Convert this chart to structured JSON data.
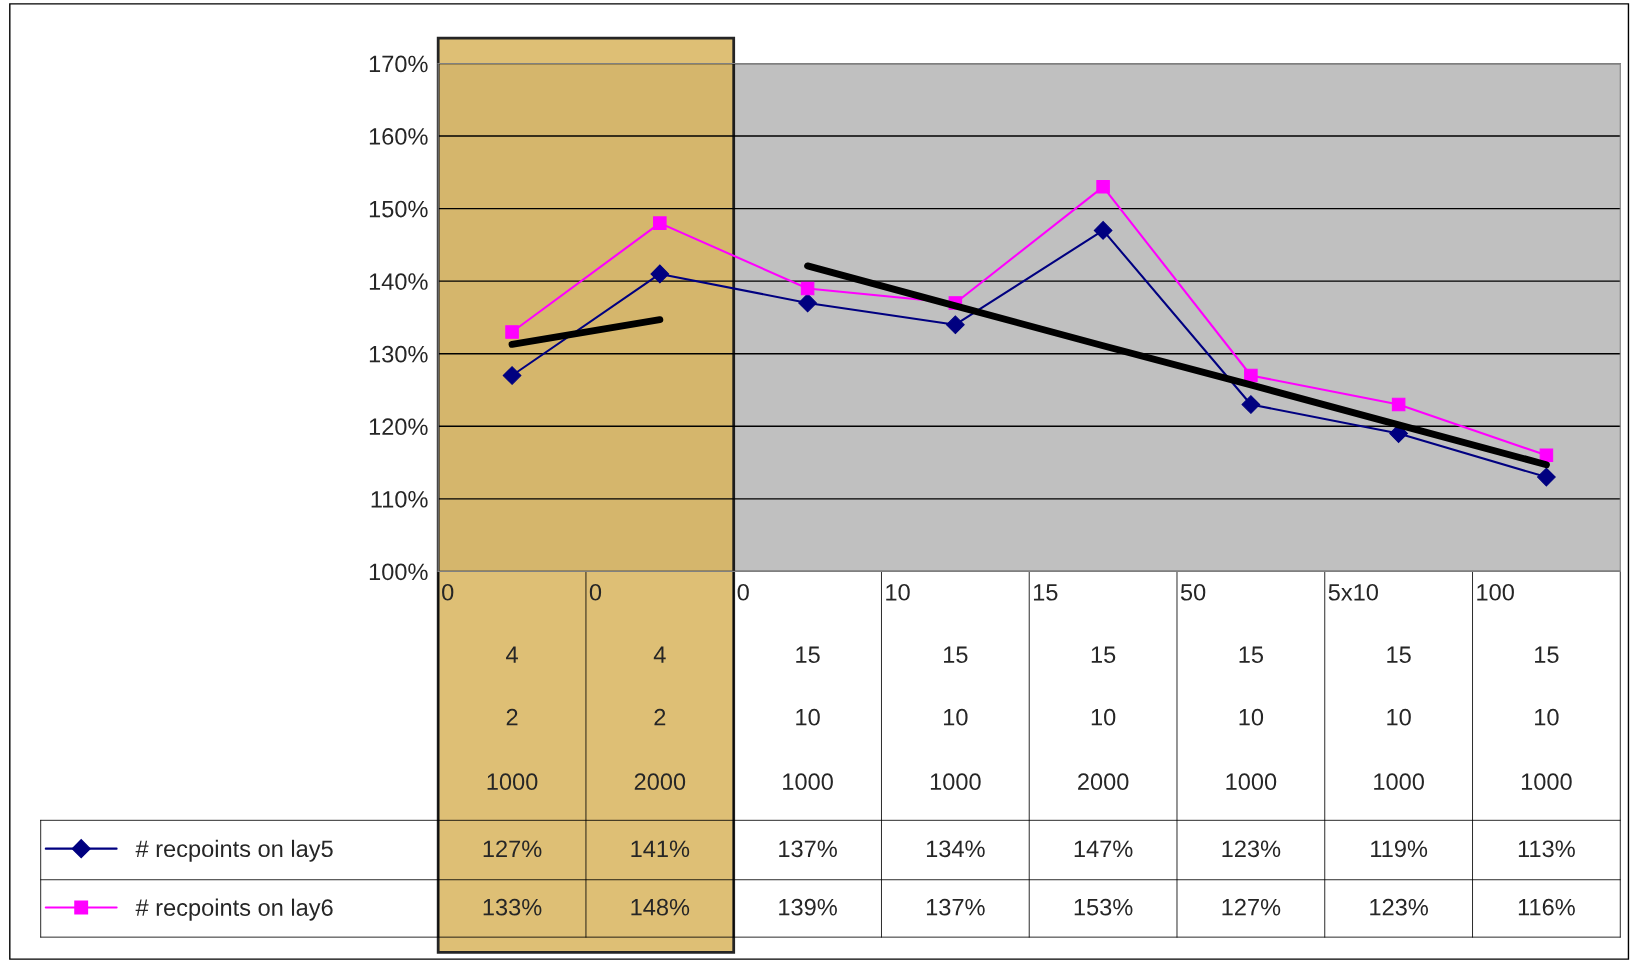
{
  "chart_data": {
    "type": "line",
    "categories": [
      "0\n4\n2\n1000",
      "0\n4\n2\n2000",
      "0\n15\n10\n1000",
      "10\n15\n10\n1000",
      "15\n15\n10\n2000",
      "50\n15\n10\n1000",
      "5x10\n15\n10\n1000",
      "100\n15\n10\n1000"
    ],
    "series": [
      {
        "name": "# recpoints on lay5",
        "color": "#000080",
        "marker": "diamond",
        "values": [
          127,
          141,
          137,
          134,
          147,
          123,
          119,
          113
        ],
        "value_labels": [
          "127%",
          "141%",
          "137%",
          "134%",
          "147%",
          "123%",
          "119%",
          "113%"
        ]
      },
      {
        "name": "# recpoints on lay6",
        "color": "#ff00ff",
        "marker": "square",
        "values": [
          133,
          148,
          139,
          137,
          153,
          127,
          123,
          116
        ],
        "value_labels": [
          "133%",
          "148%",
          "139%",
          "137%",
          "153%",
          "127%",
          "123%",
          "116%"
        ]
      },
      {
        "type": "line",
        "color": "#000000",
        "marker": "none",
        "values": [
          131.3,
          134.7,
          null,
          null,
          null,
          null,
          null,
          null
        ]
      },
      {
        "type": "line",
        "color": "#000000",
        "marker": "none",
        "values": [
          null,
          null,
          142.1,
          136.6,
          131.1,
          125.7,
          120.2,
          114.7
        ]
      }
    ],
    "ylim": [
      100,
      170
    ],
    "yticks": [
      {
        "value": 100,
        "label": "100%"
      },
      {
        "value": 110,
        "label": "110%"
      },
      {
        "value": 120,
        "label": "120%"
      },
      {
        "value": 130,
        "label": "130%"
      },
      {
        "value": 140,
        "label": "140%"
      },
      {
        "value": 150,
        "label": "150%"
      },
      {
        "value": 160,
        "label": "160%"
      },
      {
        "value": 170,
        "label": "170%"
      }
    ],
    "grid": "y",
    "legend": "bottom left"
  }
}
